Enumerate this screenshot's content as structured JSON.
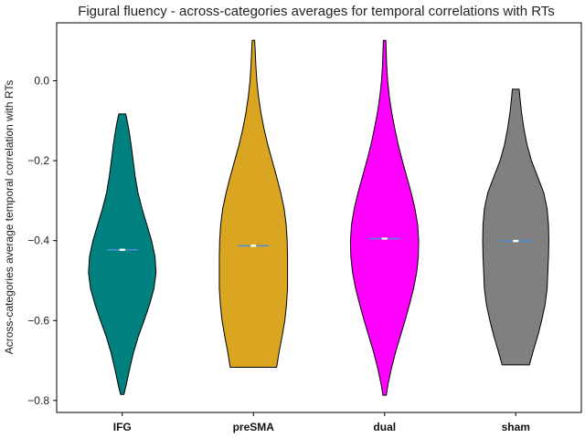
{
  "chart_data": {
    "type": "violin",
    "title": "Figural fluency - across-categories averages for temporal correlations with RTs",
    "xlabel": "",
    "ylabel": "Across-categories average temporal correlation with RTs",
    "ylim": [
      -0.83,
      0.145
    ],
    "yticks": [
      0.0,
      -0.2,
      -0.4,
      -0.6,
      -0.8
    ],
    "ytick_labels": [
      "0.0",
      "−0.2",
      "−0.4",
      "−0.6",
      "−0.8"
    ],
    "categories": [
      "IFG",
      "preSMA",
      "dual",
      "sham"
    ],
    "series": [
      {
        "category": "IFG",
        "color": "#00807F",
        "min": -0.785,
        "max": -0.083,
        "median": -0.423,
        "profile": [
          [
            -0.785,
            0.05
          ],
          [
            -0.76,
            0.12
          ],
          [
            -0.72,
            0.22
          ],
          [
            -0.68,
            0.33
          ],
          [
            -0.64,
            0.47
          ],
          [
            -0.6,
            0.64
          ],
          [
            -0.56,
            0.8
          ],
          [
            -0.52,
            0.93
          ],
          [
            -0.48,
            0.99
          ],
          [
            -0.44,
            0.96
          ],
          [
            -0.4,
            0.86
          ],
          [
            -0.36,
            0.72
          ],
          [
            -0.32,
            0.58
          ],
          [
            -0.28,
            0.46
          ],
          [
            -0.24,
            0.38
          ],
          [
            -0.2,
            0.32
          ],
          [
            -0.16,
            0.26
          ],
          [
            -0.12,
            0.19
          ],
          [
            -0.09,
            0.12
          ],
          [
            -0.083,
            0.1
          ]
        ]
      },
      {
        "category": "preSMA",
        "color": "#DAA520",
        "min": -0.717,
        "max": 0.101,
        "median": -0.413,
        "profile": [
          [
            -0.717,
            0.68
          ],
          [
            -0.68,
            0.75
          ],
          [
            -0.64,
            0.84
          ],
          [
            -0.6,
            0.92
          ],
          [
            -0.56,
            0.97
          ],
          [
            -0.52,
            1.0
          ],
          [
            -0.48,
            1.0
          ],
          [
            -0.44,
            1.0
          ],
          [
            -0.4,
            0.99
          ],
          [
            -0.36,
            0.96
          ],
          [
            -0.32,
            0.9
          ],
          [
            -0.28,
            0.8
          ],
          [
            -0.24,
            0.68
          ],
          [
            -0.2,
            0.55
          ],
          [
            -0.16,
            0.42
          ],
          [
            -0.12,
            0.31
          ],
          [
            -0.08,
            0.22
          ],
          [
            -0.04,
            0.15
          ],
          [
            0.0,
            0.1
          ],
          [
            0.04,
            0.07
          ],
          [
            0.08,
            0.05
          ],
          [
            0.101,
            0.035
          ]
        ]
      },
      {
        "category": "dual",
        "color": "#FF00FF",
        "min": -0.787,
        "max": 0.101,
        "median": -0.395,
        "profile": [
          [
            -0.787,
            0.05
          ],
          [
            -0.76,
            0.1
          ],
          [
            -0.72,
            0.2
          ],
          [
            -0.68,
            0.32
          ],
          [
            -0.64,
            0.46
          ],
          [
            -0.6,
            0.6
          ],
          [
            -0.56,
            0.73
          ],
          [
            -0.52,
            0.85
          ],
          [
            -0.48,
            0.94
          ],
          [
            -0.44,
            0.99
          ],
          [
            -0.4,
            1.0
          ],
          [
            -0.36,
            0.97
          ],
          [
            -0.32,
            0.89
          ],
          [
            -0.28,
            0.78
          ],
          [
            -0.24,
            0.65
          ],
          [
            -0.2,
            0.52
          ],
          [
            -0.16,
            0.4
          ],
          [
            -0.12,
            0.3
          ],
          [
            -0.08,
            0.21
          ],
          [
            -0.04,
            0.14
          ],
          [
            0.0,
            0.09
          ],
          [
            0.04,
            0.06
          ],
          [
            0.08,
            0.045
          ],
          [
            0.101,
            0.035
          ]
        ]
      },
      {
        "category": "sham",
        "color": "#808080",
        "min": -0.711,
        "max": -0.021,
        "median": -0.401,
        "profile": [
          [
            -0.711,
            0.4
          ],
          [
            -0.68,
            0.5
          ],
          [
            -0.64,
            0.64
          ],
          [
            -0.6,
            0.76
          ],
          [
            -0.56,
            0.86
          ],
          [
            -0.52,
            0.92
          ],
          [
            -0.48,
            0.94
          ],
          [
            -0.44,
            0.96
          ],
          [
            -0.4,
            0.97
          ],
          [
            -0.36,
            0.96
          ],
          [
            -0.32,
            0.92
          ],
          [
            -0.28,
            0.82
          ],
          [
            -0.24,
            0.64
          ],
          [
            -0.2,
            0.46
          ],
          [
            -0.16,
            0.33
          ],
          [
            -0.12,
            0.24
          ],
          [
            -0.08,
            0.17
          ],
          [
            -0.04,
            0.12
          ],
          [
            -0.021,
            0.1
          ]
        ]
      }
    ],
    "median_marker_color": "#4A90D9",
    "grid": false
  }
}
